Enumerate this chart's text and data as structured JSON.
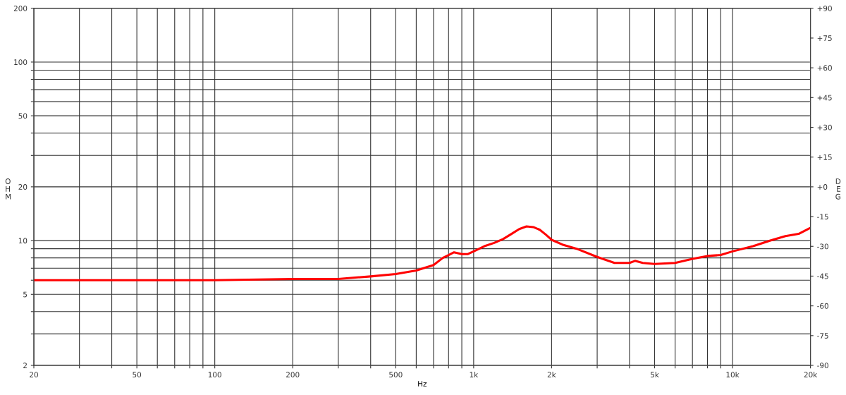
{
  "chart_data": {
    "type": "line",
    "xlabel": "Hz",
    "ylabel": "OHM",
    "y2label": "DEG",
    "log": "xy",
    "grid": true,
    "marker": "none",
    "line_style": "solid",
    "x": [
      20,
      35,
      100,
      200,
      300,
      400,
      500,
      600,
      700,
      760,
      800,
      840,
      900,
      950,
      1000,
      1100,
      1200,
      1300,
      1400,
      1500,
      1600,
      1700,
      1800,
      1900,
      2000,
      2200,
      2500,
      3000,
      3500,
      4000,
      4200,
      4500,
      5000,
      6000,
      7000,
      8000,
      9000,
      10000,
      12000,
      14000,
      16000,
      18000,
      20000
    ],
    "series": [
      {
        "color": "#ff0000",
        "values": [
          6.0,
          6.0,
          6.0,
          6.1,
          6.1,
          6.3,
          6.5,
          6.8,
          7.3,
          8.0,
          8.3,
          8.6,
          8.4,
          8.4,
          8.7,
          9.3,
          9.7,
          10.2,
          10.9,
          11.6,
          12.0,
          11.9,
          11.5,
          10.8,
          10.1,
          9.5,
          9.0,
          8.1,
          7.5,
          7.5,
          7.7,
          7.5,
          7.4,
          7.5,
          7.9,
          8.2,
          8.3,
          8.7,
          9.3,
          10.0,
          10.6,
          10.9,
          11.8
        ]
      }
    ],
    "xlim": [
      20,
      20000
    ],
    "xticks": [
      20,
      {
        "value": 30,
        "label": null
      },
      {
        "value": 40,
        "label": null
      },
      50,
      {
        "value": 60,
        "label": null
      },
      {
        "value": 70,
        "label": null
      },
      {
        "value": 80,
        "label": null
      },
      {
        "value": 90,
        "label": null
      },
      100,
      200,
      {
        "value": 300,
        "label": null
      },
      {
        "value": 400,
        "label": null
      },
      500,
      {
        "value": 600,
        "label": null
      },
      {
        "value": 700,
        "label": null
      },
      {
        "value": 800,
        "label": null
      },
      {
        "value": 900,
        "label": null
      },
      {
        "value": 1000,
        "label": "1k"
      },
      {
        "value": 2000,
        "label": "2k"
      },
      {
        "value": 3000,
        "label": null
      },
      {
        "value": 4000,
        "label": null
      },
      {
        "value": 5000,
        "label": "5k"
      },
      {
        "value": 6000,
        "label": null
      },
      {
        "value": 7000,
        "label": null
      },
      {
        "value": 8000,
        "label": null
      },
      {
        "value": 9000,
        "label": null
      },
      {
        "value": 10000,
        "label": "10k"
      },
      {
        "value": 20000,
        "label": "20k"
      }
    ],
    "ylim": [
      2,
      200
    ],
    "yticks": [
      2,
      {
        "value": 3,
        "label": null
      },
      {
        "value": 4,
        "label": null
      },
      5,
      {
        "value": 6,
        "label": null
      },
      {
        "value": 7,
        "label": null
      },
      {
        "value": 8,
        "label": null
      },
      {
        "value": 9,
        "label": null
      },
      10,
      20,
      {
        "value": 30,
        "label": null
      },
      {
        "value": 40,
        "label": null
      },
      50,
      {
        "value": 60,
        "label": null
      },
      {
        "value": 70,
        "label": null
      },
      {
        "value": 80,
        "label": null
      },
      {
        "value": 90,
        "label": null
      },
      100,
      200
    ],
    "y2lim": [
      -90,
      90
    ],
    "y2ticks": [
      {
        "value": -90,
        "label": "-90"
      },
      {
        "value": -75,
        "label": "-75"
      },
      {
        "value": -60,
        "label": "-60"
      },
      {
        "value": -45,
        "label": "-45"
      },
      {
        "value": -30,
        "label": "-30"
      },
      {
        "value": -15,
        "label": "-15"
      },
      {
        "value": 0,
        "label": "+0"
      },
      {
        "value": 15,
        "label": "+15"
      },
      {
        "value": 30,
        "label": "+30"
      },
      {
        "value": 45,
        "label": "+45"
      },
      {
        "value": 60,
        "label": "+60"
      },
      {
        "value": 75,
        "label": "+75"
      },
      {
        "value": 90,
        "label": "+90"
      }
    ]
  }
}
